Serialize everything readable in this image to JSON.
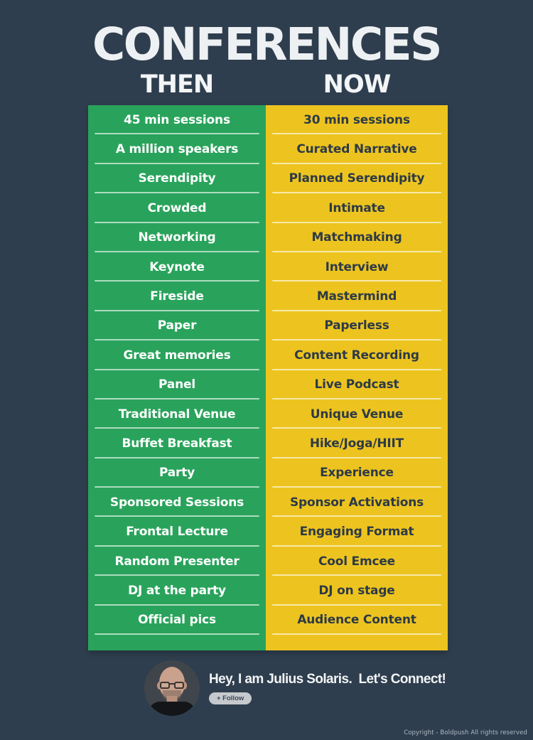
{
  "title": "CONFERENCES",
  "columns": {
    "then": {
      "header": "THEN",
      "items": [
        "45 min sessions",
        "A million speakers",
        "Serendipity",
        "Crowded",
        "Networking",
        "Keynote",
        "Fireside",
        "Paper",
        "Great memories",
        "Panel",
        "Traditional Venue",
        "Buffet Breakfast",
        "Party",
        "Sponsored Sessions",
        "Frontal Lecture",
        "Random Presenter",
        "DJ at the party",
        "Official pics"
      ]
    },
    "now": {
      "header": "NOW",
      "items": [
        "30 min sessions",
        "Curated Narrative",
        "Planned Serendipity",
        "Intimate",
        "Matchmaking",
        "Interview",
        "Mastermind",
        "Paperless",
        "Content Recording",
        "Live Podcast",
        "Unique Venue",
        "Hike/Joga/HIIT",
        "Experience",
        "Sponsor Activations",
        "Engaging Format",
        "Cool Emcee",
        "DJ on stage",
        "Audience Content"
      ]
    }
  },
  "footer": {
    "message": "Hey, I am Julius Solaris.  Let's Connect!",
    "follow_label": "+ Follow",
    "avatar_alt": "julius-solaris-photo"
  },
  "copyright": "Copyright - Boldpush All rights reserved",
  "colors": {
    "background": "#2f3e4e",
    "then_column": "#29a35b",
    "now_column": "#edc41f",
    "then_text": "#ffffff",
    "now_text": "#2d3a46",
    "title_text": "#eef1f3",
    "separator": "rgba(255,255,255,0.62)",
    "follow_pill": "#c6c9cd"
  }
}
